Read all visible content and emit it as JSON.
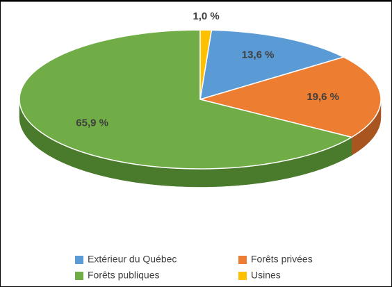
{
  "chart_data": {
    "type": "pie",
    "categories": [
      "Extérieur du Québec",
      "Forêts privées",
      "Forêts publiques",
      "Usines"
    ],
    "values": [
      13.6,
      19.6,
      65.9,
      1.0
    ],
    "value_labels": [
      "13,6 %",
      "19,6 %",
      "65,9 %",
      "1,0 %"
    ],
    "colors": [
      "#5b9bd5",
      "#ed7d31",
      "#70ad47",
      "#ffc000"
    ],
    "side_colors": [
      "#3f6f9c",
      "#a85520",
      "#4a7a2c",
      "#b88a00"
    ],
    "legend": "bottom"
  }
}
